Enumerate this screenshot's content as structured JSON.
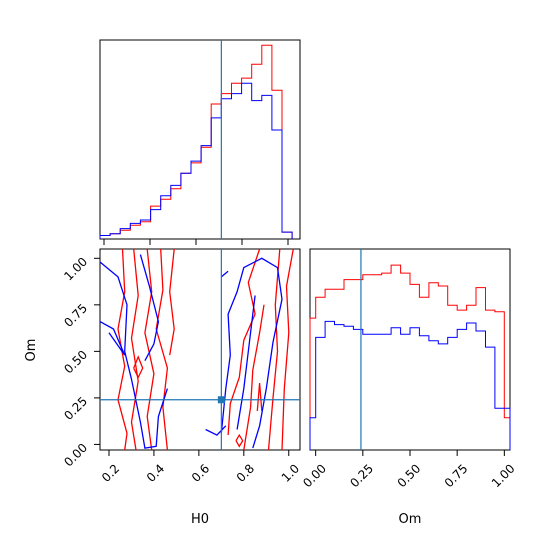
{
  "chart_data": {
    "type": "corner",
    "truth": {
      "H0": 0.7,
      "Om": 0.24
    },
    "series": [
      {
        "color": "#ff0000"
      },
      {
        "color": "#0000ff"
      }
    ],
    "truth_color": "#1f77b4",
    "panels": [
      {
        "id": "hist-H0",
        "type": "histogram",
        "xlim": [
          0.16,
          1.05
        ],
        "bin_edges": [
          0.16,
          0.205,
          0.25,
          0.295,
          0.34,
          0.385,
          0.43,
          0.475,
          0.52,
          0.565,
          0.61,
          0.655,
          0.7,
          0.745,
          0.79,
          0.835,
          0.88,
          0.925,
          0.97,
          1.015
        ],
        "series_values": [
          [
            0.02,
            0.03,
            0.05,
            0.08,
            0.1,
            0.19,
            0.23,
            0.29,
            0.38,
            0.44,
            0.53,
            0.78,
            0.84,
            0.9,
            0.93,
            1.01,
            1.12,
            0.86,
            0.04
          ],
          [
            0.02,
            0.03,
            0.06,
            0.09,
            0.11,
            0.17,
            0.25,
            0.31,
            0.38,
            0.45,
            0.54,
            0.7,
            0.81,
            0.84,
            0.9,
            0.8,
            0.83,
            0.63,
            0.04
          ]
        ],
        "truth_line": 0.7
      },
      {
        "id": "hist-Om",
        "type": "histogram",
        "xlim": [
          -0.03,
          1.03
        ],
        "xlabel": "Om",
        "xticks": [
          0.0,
          0.25,
          0.5,
          0.75,
          1.0
        ],
        "xtick_labels": [
          "0.00",
          "0.25",
          "0.50",
          "0.75",
          "1.00"
        ],
        "bin_edges": [
          -0.03,
          0.0,
          0.05,
          0.1,
          0.15,
          0.2,
          0.25,
          0.3,
          0.35,
          0.4,
          0.45,
          0.5,
          0.55,
          0.6,
          0.65,
          0.7,
          0.75,
          0.8,
          0.85,
          0.9,
          0.95,
          1.0,
          1.03
        ],
        "series_values": [
          [
            0.82,
            0.95,
            1.0,
            1.0,
            1.06,
            1.06,
            1.09,
            1.09,
            1.1,
            1.15,
            1.1,
            1.03,
            0.95,
            1.04,
            1.02,
            0.9,
            0.87,
            0.9,
            1.01,
            0.87,
            0.86,
            0.2
          ],
          [
            0.2,
            0.7,
            0.8,
            0.78,
            0.77,
            0.75,
            0.72,
            0.72,
            0.72,
            0.76,
            0.72,
            0.76,
            0.71,
            0.68,
            0.66,
            0.7,
            0.75,
            0.79,
            0.74,
            0.64,
            0.26,
            0.26
          ]
        ],
        "truth_line": 0.24
      },
      {
        "id": "contour-H0-Om",
        "type": "contour",
        "xlim": [
          0.16,
          1.05
        ],
        "ylim": [
          -0.03,
          1.05
        ],
        "xlabel": "H0",
        "ylabel": "Om",
        "xticks": [
          0.2,
          0.4,
          0.6,
          0.8,
          1.0
        ],
        "xtick_labels": [
          "0.2",
          "0.4",
          "0.6",
          "0.8",
          "1.0"
        ],
        "yticks": [
          0.0,
          0.25,
          0.5,
          0.75,
          1.0
        ],
        "ytick_labels": [
          "0.00",
          "0.25",
          "0.50",
          "0.75",
          "1.00"
        ],
        "truth_point": [
          0.7,
          0.24
        ],
        "series_contours": [
          [
            [
              [
                0.26,
                1.05
              ],
              [
                0.27,
                0.82
              ],
              [
                0.24,
                0.62
              ],
              [
                0.27,
                0.42
              ],
              [
                0.24,
                0.24
              ],
              [
                0.28,
                0.06
              ],
              [
                0.27,
                -0.03
              ]
            ],
            [
              [
                0.31,
                1.05
              ],
              [
                0.33,
                0.8
              ],
              [
                0.3,
                0.57
              ],
              [
                0.33,
                0.34
              ],
              [
                0.3,
                0.12
              ],
              [
                0.32,
                -0.03
              ]
            ],
            [
              [
                0.37,
                1.05
              ],
              [
                0.39,
                0.82
              ],
              [
                0.36,
                0.6
              ],
              [
                0.4,
                0.38
              ],
              [
                0.37,
                0.15
              ],
              [
                0.39,
                -0.03
              ]
            ],
            [
              [
                0.43,
                1.05
              ],
              [
                0.44,
                0.83
              ],
              [
                0.41,
                0.62
              ],
              [
                0.46,
                0.41
              ],
              [
                0.44,
                0.2
              ],
              [
                0.46,
                -0.03
              ]
            ],
            [
              [
                0.49,
                1.05
              ],
              [
                0.47,
                0.82
              ],
              [
                0.49,
                0.62
              ],
              [
                0.47,
                0.48
              ]
            ],
            [
              [
                0.73,
                0.05
              ],
              [
                0.74,
                0.22
              ],
              [
                0.78,
                0.36
              ],
              [
                0.8,
                0.56
              ],
              [
                0.85,
                0.7
              ],
              [
                0.82,
                0.87
              ],
              [
                0.87,
                1.05
              ]
            ],
            [
              [
                0.8,
                -0.03
              ],
              [
                0.83,
                0.2
              ],
              [
                0.84,
                0.4
              ],
              [
                0.87,
                0.6
              ],
              [
                0.89,
                0.75
              ]
            ],
            [
              [
                0.91,
                -0.03
              ],
              [
                0.93,
                0.25
              ],
              [
                0.95,
                0.5
              ],
              [
                0.94,
                0.75
              ],
              [
                0.96,
                1.05
              ]
            ],
            [
              [
                0.97,
                -0.03
              ],
              [
                0.98,
                0.3
              ],
              [
                1.0,
                0.6
              ],
              [
                0.99,
                0.85
              ],
              [
                1.02,
                1.05
              ]
            ],
            [
              [
                0.31,
                0.41
              ],
              [
                0.33,
                0.47
              ],
              [
                0.35,
                0.41
              ],
              [
                0.33,
                0.36
              ],
              [
                0.31,
                0.41
              ]
            ],
            [
              [
                0.765,
                0.02
              ],
              [
                0.78,
                0.05
              ],
              [
                0.795,
                0.02
              ],
              [
                0.78,
                -0.01
              ],
              [
                0.765,
                0.02
              ]
            ],
            [
              [
                0.86,
                0.18
              ],
              [
                0.87,
                0.33
              ],
              [
                0.88,
                0.18
              ]
            ]
          ],
          [
            [
              [
                0.16,
                0.98
              ],
              [
                0.24,
                0.9
              ],
              [
                0.28,
                0.75
              ],
              [
                0.27,
                0.5
              ],
              [
                0.3,
                0.35
              ],
              [
                0.34,
                0.12
              ],
              [
                0.36,
                -0.02
              ],
              [
                0.41,
                -0.01
              ],
              [
                0.42,
                0.15
              ],
              [
                0.46,
                0.3
              ]
            ],
            [
              [
                0.34,
                1.02
              ],
              [
                0.38,
                0.85
              ],
              [
                0.42,
                0.66
              ],
              [
                0.4,
                0.54
              ],
              [
                0.36,
                0.45
              ]
            ],
            [
              [
                0.16,
                0.66
              ],
              [
                0.22,
                0.62
              ],
              [
                0.27,
                0.48
              ],
              [
                0.2,
                0.6
              ]
            ],
            [
              [
                0.7,
                0.06
              ],
              [
                0.72,
                0.3
              ],
              [
                0.74,
                0.48
              ],
              [
                0.73,
                0.7
              ],
              [
                0.77,
                0.82
              ],
              [
                0.8,
                0.95
              ],
              [
                0.88,
                1.0
              ],
              [
                0.95,
                0.95
              ],
              [
                0.97,
                0.78
              ],
              [
                0.93,
                0.55
              ],
              [
                0.9,
                0.3
              ],
              [
                0.87,
                0.1
              ],
              [
                0.84,
                -0.02
              ]
            ],
            [
              [
                0.77,
                0.08
              ],
              [
                0.8,
                0.3
              ],
              [
                0.82,
                0.5
              ],
              [
                0.84,
                0.7
              ],
              [
                0.85,
                0.8
              ]
            ],
            [
              [
                0.63,
                0.08
              ],
              [
                0.68,
                0.05
              ],
              [
                0.72,
                0.1
              ]
            ],
            [
              [
                0.7,
                0.9
              ],
              [
                0.73,
                0.93
              ]
            ]
          ]
        ]
      }
    ]
  }
}
